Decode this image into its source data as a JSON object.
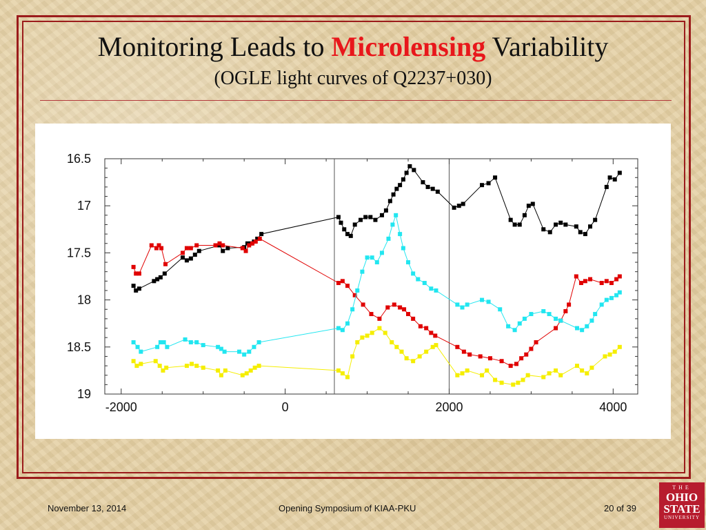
{
  "slide": {
    "title_pre": "Monitoring Leads to",
    "title_accent": "Microlensing",
    "title_post": "Variability",
    "subtitle": "(OGLE light curves of Q2237+030)",
    "footer_date": "November 13, 2014",
    "footer_event": "Opening Symposium of KIAA-PKU",
    "footer_page": "20 of 39",
    "logo_line1": "THE",
    "logo_line2a": "OHIO",
    "logo_line2b": "STATE",
    "logo_line3": "UNIVERSITY"
  },
  "colors": {
    "frame": "#9b1b1b",
    "accent": "#e8171b",
    "background": "#e6d2a6",
    "black_series": "#000000",
    "red_series": "#e00000",
    "cyan_series": "#22e6f0",
    "yellow_series": "#f5ee00"
  },
  "chart_data": {
    "type": "scatter",
    "xlim": [
      -2200,
      4300
    ],
    "ylim": [
      19,
      16.5
    ],
    "y_inverted": true,
    "xticks": [
      -2000,
      0,
      2000,
      4000
    ],
    "xtick_labels": [
      "-2000",
      "0",
      "2000",
      "4000"
    ],
    "yticks": [
      16.5,
      17,
      17.5,
      18,
      18.5,
      19
    ],
    "ytick_labels": [
      "16.5",
      "17",
      "17.5",
      "18",
      "18.5",
      "19"
    ],
    "vlines": [
      600,
      2000
    ],
    "grid": false,
    "series": [
      {
        "color": "#000000",
        "points": [
          [
            -1850,
            17.85
          ],
          [
            -1820,
            17.9
          ],
          [
            -1780,
            17.88
          ],
          [
            -1600,
            17.8
          ],
          [
            -1560,
            17.78
          ],
          [
            -1520,
            17.76
          ],
          [
            -1470,
            17.72
          ],
          [
            -1250,
            17.55
          ],
          [
            -1200,
            17.58
          ],
          [
            -1150,
            17.56
          ],
          [
            -1100,
            17.52
          ],
          [
            -1050,
            17.48
          ],
          [
            -800,
            17.42
          ],
          [
            -760,
            17.48
          ],
          [
            -700,
            17.45
          ],
          [
            -500,
            17.44
          ],
          [
            -460,
            17.4
          ],
          [
            -420,
            17.4
          ],
          [
            -380,
            17.38
          ],
          [
            -340,
            17.35
          ],
          [
            -290,
            17.3
          ],
          [
            650,
            17.12
          ],
          [
            680,
            17.18
          ],
          [
            720,
            17.25
          ],
          [
            760,
            17.3
          ],
          [
            800,
            17.32
          ],
          [
            850,
            17.2
          ],
          [
            920,
            17.15
          ],
          [
            980,
            17.12
          ],
          [
            1040,
            17.12
          ],
          [
            1100,
            17.15
          ],
          [
            1180,
            17.1
          ],
          [
            1230,
            17.05
          ],
          [
            1280,
            16.95
          ],
          [
            1320,
            16.88
          ],
          [
            1360,
            16.82
          ],
          [
            1400,
            16.78
          ],
          [
            1440,
            16.72
          ],
          [
            1480,
            16.65
          ],
          [
            1520,
            16.58
          ],
          [
            1570,
            16.62
          ],
          [
            1680,
            16.75
          ],
          [
            1740,
            16.8
          ],
          [
            1800,
            16.82
          ],
          [
            1860,
            16.85
          ],
          [
            2060,
            17.02
          ],
          [
            2120,
            17.0
          ],
          [
            2170,
            16.98
          ],
          [
            2400,
            16.78
          ],
          [
            2480,
            16.76
          ],
          [
            2560,
            16.7
          ],
          [
            2750,
            17.15
          ],
          [
            2800,
            17.2
          ],
          [
            2860,
            17.2
          ],
          [
            2920,
            17.1
          ],
          [
            2970,
            17.0
          ],
          [
            3020,
            16.98
          ],
          [
            3150,
            17.25
          ],
          [
            3230,
            17.28
          ],
          [
            3300,
            17.2
          ],
          [
            3360,
            17.18
          ],
          [
            3420,
            17.2
          ],
          [
            3550,
            17.22
          ],
          [
            3600,
            17.28
          ],
          [
            3660,
            17.3
          ],
          [
            3720,
            17.22
          ],
          [
            3780,
            17.15
          ],
          [
            3920,
            16.8
          ],
          [
            3960,
            16.7
          ],
          [
            4020,
            16.72
          ],
          [
            4080,
            16.65
          ]
        ]
      },
      {
        "color": "#e00000",
        "points": [
          [
            -1850,
            17.65
          ],
          [
            -1820,
            17.72
          ],
          [
            -1780,
            17.72
          ],
          [
            -1630,
            17.42
          ],
          [
            -1570,
            17.45
          ],
          [
            -1540,
            17.42
          ],
          [
            -1510,
            17.45
          ],
          [
            -1460,
            17.62
          ],
          [
            -1250,
            17.5
          ],
          [
            -1200,
            17.45
          ],
          [
            -1150,
            17.45
          ],
          [
            -1080,
            17.42
          ],
          [
            -850,
            17.42
          ],
          [
            -800,
            17.4
          ],
          [
            -760,
            17.42
          ],
          [
            -520,
            17.45
          ],
          [
            -480,
            17.48
          ],
          [
            -440,
            17.42
          ],
          [
            -400,
            17.4
          ],
          [
            -360,
            17.38
          ],
          [
            -310,
            17.35
          ],
          [
            650,
            17.82
          ],
          [
            700,
            17.8
          ],
          [
            760,
            17.85
          ],
          [
            850,
            17.95
          ],
          [
            950,
            18.05
          ],
          [
            1050,
            18.15
          ],
          [
            1150,
            18.2
          ],
          [
            1250,
            18.08
          ],
          [
            1330,
            18.05
          ],
          [
            1400,
            18.08
          ],
          [
            1450,
            18.1
          ],
          [
            1500,
            18.15
          ],
          [
            1560,
            18.2
          ],
          [
            1650,
            18.28
          ],
          [
            1720,
            18.3
          ],
          [
            1780,
            18.35
          ],
          [
            1830,
            18.38
          ],
          [
            2100,
            18.5
          ],
          [
            2180,
            18.55
          ],
          [
            2250,
            18.58
          ],
          [
            2380,
            18.6
          ],
          [
            2500,
            18.62
          ],
          [
            2640,
            18.65
          ],
          [
            2750,
            18.7
          ],
          [
            2820,
            18.68
          ],
          [
            2880,
            18.62
          ],
          [
            2940,
            18.58
          ],
          [
            3000,
            18.52
          ],
          [
            3060,
            18.45
          ],
          [
            3300,
            18.3
          ],
          [
            3360,
            18.22
          ],
          [
            3420,
            18.12
          ],
          [
            3460,
            18.05
          ],
          [
            3550,
            17.75
          ],
          [
            3610,
            17.82
          ],
          [
            3660,
            17.8
          ],
          [
            3720,
            17.78
          ],
          [
            3860,
            17.82
          ],
          [
            3920,
            17.8
          ],
          [
            3980,
            17.82
          ],
          [
            4040,
            17.78
          ],
          [
            4080,
            17.75
          ]
        ]
      },
      {
        "color": "#22e6f0",
        "points": [
          [
            -1850,
            18.45
          ],
          [
            -1800,
            18.5
          ],
          [
            -1760,
            18.55
          ],
          [
            -1560,
            18.5
          ],
          [
            -1520,
            18.45
          ],
          [
            -1480,
            18.45
          ],
          [
            -1440,
            18.5
          ],
          [
            -1220,
            18.42
          ],
          [
            -1150,
            18.45
          ],
          [
            -1080,
            18.45
          ],
          [
            -1000,
            18.48
          ],
          [
            -820,
            18.5
          ],
          [
            -780,
            18.52
          ],
          [
            -740,
            18.55
          ],
          [
            -560,
            18.55
          ],
          [
            -500,
            18.58
          ],
          [
            -440,
            18.55
          ],
          [
            -380,
            18.5
          ],
          [
            -320,
            18.45
          ],
          [
            650,
            18.3
          ],
          [
            700,
            18.32
          ],
          [
            760,
            18.25
          ],
          [
            820,
            18.1
          ],
          [
            880,
            17.9
          ],
          [
            940,
            17.7
          ],
          [
            1000,
            17.55
          ],
          [
            1060,
            17.55
          ],
          [
            1120,
            17.6
          ],
          [
            1180,
            17.5
          ],
          [
            1260,
            17.35
          ],
          [
            1310,
            17.2
          ],
          [
            1350,
            17.1
          ],
          [
            1400,
            17.3
          ],
          [
            1440,
            17.45
          ],
          [
            1500,
            17.6
          ],
          [
            1560,
            17.72
          ],
          [
            1620,
            17.78
          ],
          [
            1700,
            17.82
          ],
          [
            1780,
            17.88
          ],
          [
            1840,
            17.9
          ],
          [
            2100,
            18.05
          ],
          [
            2160,
            18.08
          ],
          [
            2220,
            18.05
          ],
          [
            2400,
            18.0
          ],
          [
            2480,
            18.02
          ],
          [
            2620,
            18.1
          ],
          [
            2720,
            18.28
          ],
          [
            2800,
            18.32
          ],
          [
            2860,
            18.25
          ],
          [
            2920,
            18.2
          ],
          [
            3000,
            18.15
          ],
          [
            3150,
            18.12
          ],
          [
            3220,
            18.15
          ],
          [
            3300,
            18.2
          ],
          [
            3360,
            18.22
          ],
          [
            3560,
            18.3
          ],
          [
            3620,
            18.32
          ],
          [
            3680,
            18.28
          ],
          [
            3740,
            18.22
          ],
          [
            3780,
            18.15
          ],
          [
            3860,
            18.05
          ],
          [
            3920,
            18.0
          ],
          [
            3980,
            17.98
          ],
          [
            4040,
            17.95
          ],
          [
            4080,
            17.92
          ]
        ]
      },
      {
        "color": "#f5ee00",
        "points": [
          [
            -1850,
            18.65
          ],
          [
            -1810,
            18.7
          ],
          [
            -1760,
            18.68
          ],
          [
            -1580,
            18.65
          ],
          [
            -1530,
            18.7
          ],
          [
            -1490,
            18.75
          ],
          [
            -1450,
            18.72
          ],
          [
            -1200,
            18.7
          ],
          [
            -1140,
            18.68
          ],
          [
            -1080,
            18.7
          ],
          [
            -1000,
            18.72
          ],
          [
            -820,
            18.75
          ],
          [
            -780,
            18.8
          ],
          [
            -730,
            18.75
          ],
          [
            -520,
            18.8
          ],
          [
            -470,
            18.78
          ],
          [
            -420,
            18.75
          ],
          [
            -370,
            18.72
          ],
          [
            -320,
            18.7
          ],
          [
            650,
            18.75
          ],
          [
            700,
            18.78
          ],
          [
            760,
            18.82
          ],
          [
            820,
            18.6
          ],
          [
            880,
            18.45
          ],
          [
            940,
            18.4
          ],
          [
            1000,
            18.38
          ],
          [
            1060,
            18.35
          ],
          [
            1150,
            18.3
          ],
          [
            1220,
            18.35
          ],
          [
            1300,
            18.45
          ],
          [
            1360,
            18.5
          ],
          [
            1420,
            18.55
          ],
          [
            1480,
            18.62
          ],
          [
            1560,
            18.65
          ],
          [
            1640,
            18.6
          ],
          [
            1720,
            18.55
          ],
          [
            1800,
            18.5
          ],
          [
            1840,
            18.48
          ],
          [
            2100,
            18.8
          ],
          [
            2160,
            18.78
          ],
          [
            2220,
            18.75
          ],
          [
            2400,
            18.8
          ],
          [
            2460,
            18.75
          ],
          [
            2560,
            18.85
          ],
          [
            2640,
            18.88
          ],
          [
            2780,
            18.9
          ],
          [
            2840,
            18.88
          ],
          [
            2900,
            18.85
          ],
          [
            2960,
            18.8
          ],
          [
            3150,
            18.82
          ],
          [
            3220,
            18.78
          ],
          [
            3300,
            18.75
          ],
          [
            3360,
            18.8
          ],
          [
            3560,
            18.7
          ],
          [
            3620,
            18.75
          ],
          [
            3680,
            18.78
          ],
          [
            3740,
            18.72
          ],
          [
            3900,
            18.6
          ],
          [
            3960,
            18.58
          ],
          [
            4020,
            18.55
          ],
          [
            4080,
            18.5
          ]
        ]
      }
    ]
  }
}
